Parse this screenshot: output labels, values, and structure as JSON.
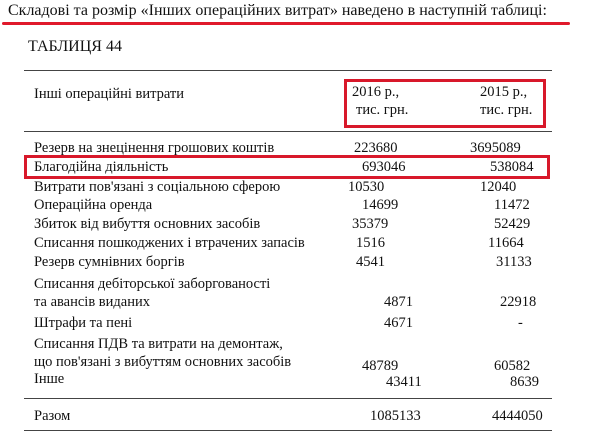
{
  "intro": "Складові та розмір «Інших операційних витрат» наведено в наступній таблиці:",
  "table_title": "ТАБЛИЦЯ 44",
  "header": {
    "label": "Інші операційні витрати",
    "col2016_line1": "2016 р.,",
    "col2016_line2": "тис. грн.",
    "col2015_line1": "2015 р.,",
    "col2015_line2": "тис. грн."
  },
  "rows": [
    {
      "label": "Резерв на знецінення грошових коштів",
      "v2016": "223680",
      "v2015": "3695089"
    },
    {
      "label": "Благодійна діяльність",
      "v2016": "693046",
      "v2015": "538084"
    },
    {
      "label": "Витрати пов'язані з соціальною сферою",
      "v2016": "10530",
      "v2015": "12040"
    },
    {
      "label": "Операційна оренда",
      "v2016": "14699",
      "v2015": "11472"
    },
    {
      "label": "Збиток від вибуття основних засобів",
      "v2016": "35379",
      "v2015": "52429"
    },
    {
      "label": "Списання пошкоджених і втрачених запасів",
      "v2016": "1516",
      "v2015": "11664"
    },
    {
      "label": "Резерв сумнівних боргів",
      "v2016": "4541",
      "v2015": "31133"
    },
    {
      "label_line1": "Списання дебіторської заборгованості",
      "label_line2": "та авансів виданих",
      "v2016": "4871",
      "v2015": "22918"
    },
    {
      "label": "Штрафи та пені",
      "v2016": "4671",
      "v2015": "-"
    },
    {
      "label_line1": "Списання ПДВ та витрати на демонтаж,",
      "label_line2": "що пов'язані з вибуттям основних засобів",
      "v2016": "48789",
      "v2015": "60582"
    },
    {
      "label": "Інше",
      "v2016": "43411",
      "v2015": "8639"
    }
  ],
  "total": {
    "label": "Разом",
    "v2016": "1085133",
    "v2015": "4444050"
  },
  "highlight_color": "#d8182a"
}
